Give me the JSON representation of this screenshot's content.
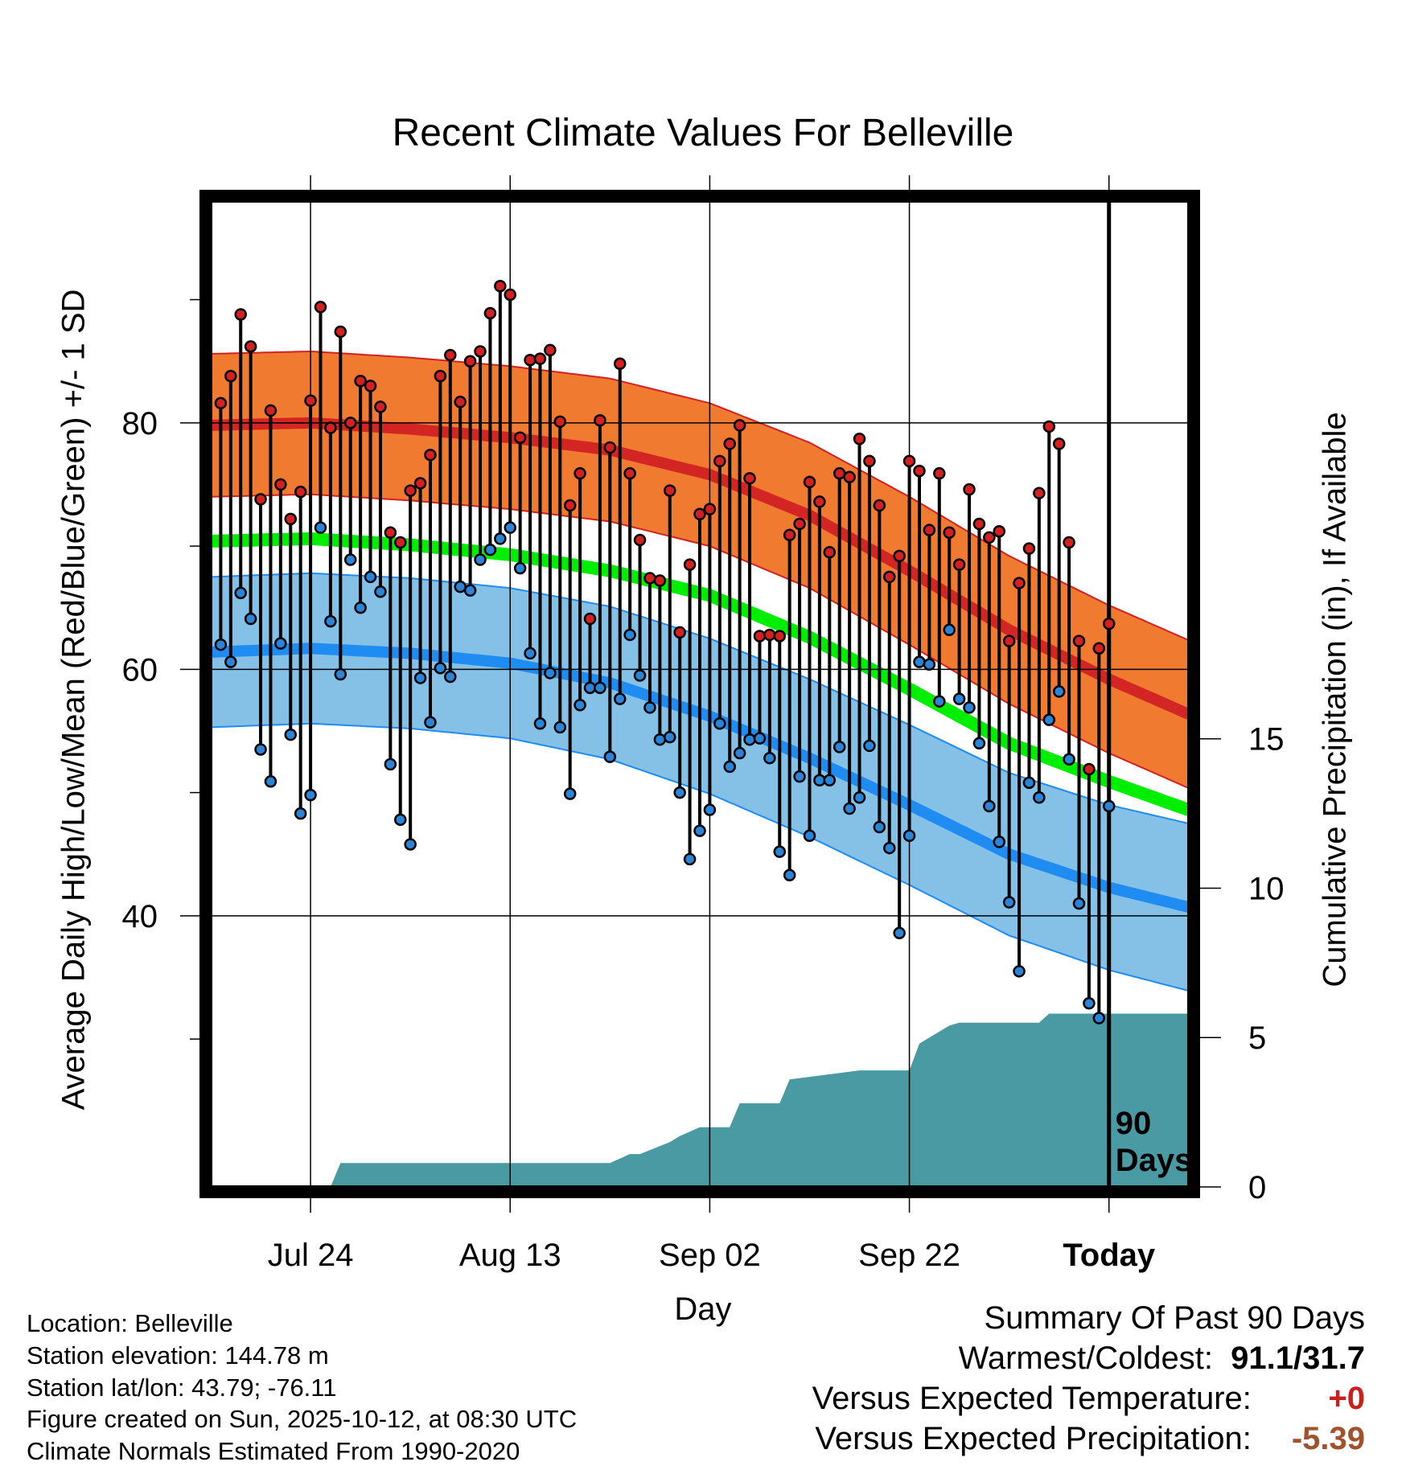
{
  "chart_data": {
    "type": "line",
    "title": "Recent Climate Values For Belleville",
    "xlabel": "Day",
    "ylabel": "Average Daily High/Low/Mean (Red/Blue/Green) +/- 1 SD",
    "y2label": "Cumulative Precipitation (in), If Available",
    "x_range_days": [
      -90,
      8
    ],
    "ylim": [
      18,
      98
    ],
    "y2lim": [
      0,
      33
    ],
    "y_ticks": [
      40,
      60,
      80
    ],
    "y_minor_ticks": [
      30,
      50,
      70,
      90
    ],
    "y2_ticks": [
      0,
      5,
      10,
      15
    ],
    "x_ticks": [
      {
        "day": -80,
        "label": "Jul 24"
      },
      {
        "day": -60,
        "label": "Aug 13"
      },
      {
        "day": -40,
        "label": "Sep 02"
      },
      {
        "day": -20,
        "label": "Sep 22"
      },
      {
        "day": 0,
        "label": "Today"
      }
    ],
    "period_marker": {
      "day": 0,
      "label_line1": "90",
      "label_line2": "Days"
    },
    "normals": {
      "days": [
        -90,
        -80,
        -70,
        -60,
        -50,
        -40,
        -30,
        -20,
        -10,
        0,
        9
      ],
      "high_mean": [
        79.8,
        80.0,
        79.5,
        78.8,
        77.8,
        75.8,
        72.5,
        68.0,
        63.2,
        59.2,
        56.0
      ],
      "high_sd": [
        5.8,
        5.8,
        5.8,
        5.8,
        5.8,
        5.8,
        5.9,
        6.0,
        6.0,
        6.0,
        6.0
      ],
      "mean": [
        70.4,
        70.6,
        70.1,
        69.3,
        68.0,
        66.0,
        62.6,
        58.4,
        54.0,
        50.9,
        48.3
      ],
      "low_mean": [
        61.4,
        61.7,
        61.3,
        60.5,
        58.9,
        56.2,
        52.8,
        49.0,
        45.0,
        42.3,
        40.5
      ],
      "low_sd": [
        6.1,
        6.1,
        6.1,
        6.1,
        6.2,
        6.3,
        6.4,
        6.5,
        6.6,
        6.7,
        6.8
      ]
    },
    "series": [
      {
        "name": "High",
        "color": "#d42020",
        "values": [
          81.6,
          83.8,
          88.8,
          86.2,
          73.8,
          81.0,
          75.0,
          72.2,
          74.4,
          81.8,
          89.4,
          79.6,
          87.4,
          80.0,
          83.4,
          83.0,
          81.3,
          71.1,
          70.3,
          74.5,
          75.1,
          77.4,
          83.8,
          85.5,
          81.7,
          85.0,
          85.8,
          88.9,
          91.1,
          90.4,
          78.8,
          85.1,
          85.2,
          85.9,
          80.1,
          73.3,
          75.9,
          64.1,
          80.2,
          78.0,
          84.8,
          75.9,
          70.5,
          67.4,
          67.2,
          74.5,
          63.0,
          68.5,
          72.6,
          73.0,
          76.9,
          78.3,
          79.8,
          75.5,
          62.7,
          62.8,
          62.7,
          70.9,
          71.8,
          75.2,
          73.6,
          69.5,
          75.9,
          75.6,
          78.7,
          76.9,
          73.3,
          67.5,
          69.2,
          76.9,
          76.1,
          71.3,
          75.9,
          71.1,
          68.5,
          74.6,
          71.8,
          70.7,
          71.2,
          62.3,
          67.0,
          69.8,
          74.3,
          79.7,
          78.3,
          70.3,
          62.3,
          51.9,
          61.7,
          63.7
        ]
      },
      {
        "name": "Low",
        "color": "#2a85d8",
        "values": [
          62.0,
          60.6,
          66.2,
          64.1,
          53.5,
          50.9,
          62.1,
          54.7,
          48.3,
          49.8,
          71.5,
          63.9,
          59.6,
          68.9,
          65.0,
          67.5,
          66.3,
          52.3,
          47.8,
          45.8,
          59.3,
          55.7,
          60.1,
          59.4,
          66.7,
          66.4,
          68.9,
          69.7,
          70.6,
          71.5,
          68.2,
          61.3,
          55.6,
          59.7,
          55.3,
          49.9,
          57.1,
          58.5,
          58.5,
          52.9,
          57.6,
          62.8,
          59.5,
          56.9,
          54.3,
          54.5,
          50.0,
          44.6,
          46.9,
          48.6,
          55.6,
          52.1,
          53.2,
          54.3,
          54.4,
          52.8,
          45.2,
          43.3,
          51.3,
          46.5,
          51.0,
          51.0,
          53.7,
          48.7,
          49.6,
          53.8,
          47.2,
          45.5,
          38.6,
          46.5,
          60.6,
          60.4,
          57.4,
          63.2,
          57.6,
          56.9,
          54.0,
          48.9,
          46.0,
          41.1,
          35.5,
          50.8,
          49.6,
          55.9,
          58.2,
          52.7,
          41.0,
          32.9,
          31.7,
          48.9
        ]
      },
      {
        "name": "Cumulative Precipitation",
        "color": "#4a9aa3",
        "days": [
          -90,
          -78,
          -77,
          -50,
          -48,
          -47,
          -44,
          -43,
          -41,
          -38,
          -37,
          -35,
          -33,
          -32,
          -25,
          -21,
          -20,
          -19,
          -18,
          -16,
          -15,
          -10,
          -9,
          -7,
          -6,
          -5,
          9
        ],
        "values": [
          0,
          0,
          0.8,
          0.8,
          1.1,
          1.1,
          1.5,
          1.7,
          2.0,
          2.0,
          2.8,
          2.8,
          2.8,
          3.6,
          3.9,
          3.9,
          3.9,
          4.8,
          5.0,
          5.4,
          5.5,
          5.5,
          5.5,
          5.5,
          5.8,
          5.8,
          5.8
        ]
      }
    ]
  },
  "info": {
    "location": "Location: Belleville",
    "elevation": "Station elevation: 144.78 m",
    "latlon": "Station lat/lon: 43.79; -76.11",
    "created": "Figure created on Sun, 2025-10-12, at 08:30 UTC",
    "normals_note": "Climate Normals Estimated From 1990-2020"
  },
  "summary": {
    "heading": "Summary Of Past 90 Days",
    "extremes_label": "Warmest/Coldest:",
    "extremes_value": "91.1/31.7",
    "temp_label": "Versus Expected Temperature:",
    "temp_value": "+0",
    "temp_color": "#c8201c",
    "precip_label": "Versus Expected Precipitation:",
    "precip_value": "-5.39",
    "precip_color": "#a0522d"
  }
}
